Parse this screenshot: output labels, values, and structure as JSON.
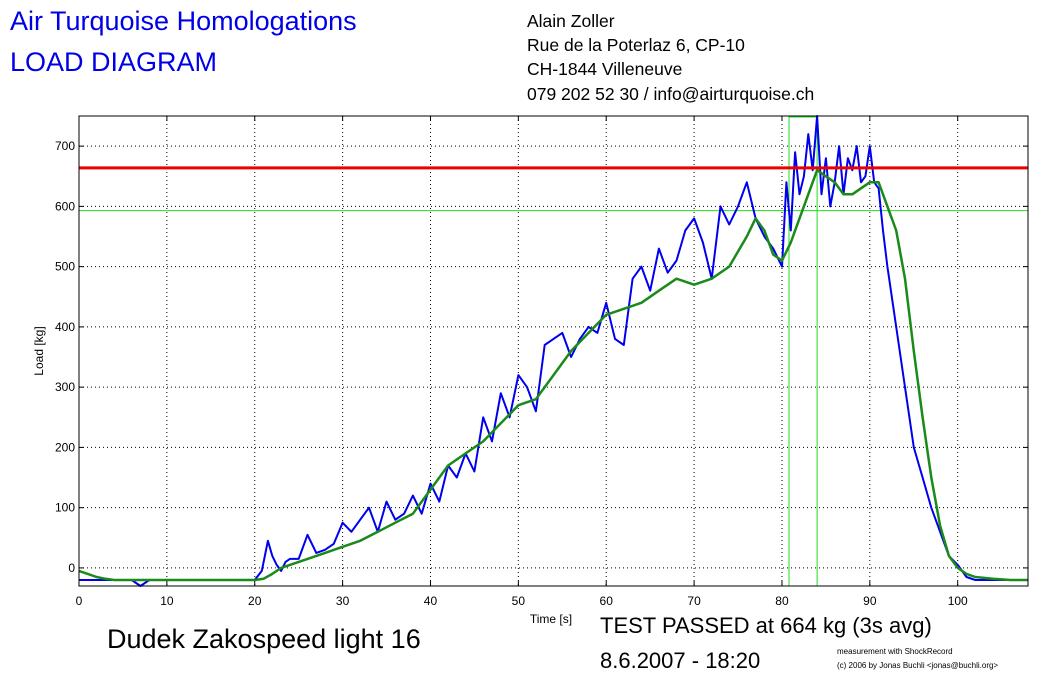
{
  "header": {
    "company": "Air Turquoise Homologations",
    "diagram_title": "LOAD DIAGRAM",
    "contact_lines": [
      "Alain Zoller",
      "Rue de la Poterlaz 6, CP-10",
      "CH-1844 Villeneuve",
      "079 202 52 30 / info@airturquoise.ch"
    ]
  },
  "footer": {
    "model": "Dudek Zakospeed light 16",
    "result": "TEST PASSED at 664 kg (3s avg)",
    "date": "8.6.2007 - 18:20",
    "credit_lines": [
      "measurement with ShockRecord",
      "(c) 2006 by Jonas Buchli <jonas@buchli.org>"
    ]
  },
  "chart_data": {
    "type": "line",
    "xlabel": "Time [s]",
    "ylabel": "Load [kg]",
    "xlim": [
      0,
      108
    ],
    "ylim": [
      -30,
      750
    ],
    "xticks": [
      0,
      10,
      20,
      30,
      40,
      50,
      60,
      70,
      80,
      90,
      100
    ],
    "yticks": [
      0,
      100,
      200,
      300,
      400,
      500,
      600,
      700
    ],
    "grid": true,
    "colors": {
      "raw": "#0000ee",
      "avg": "#1a8a1a",
      "pass_line": "#ee0000",
      "markers": "#22dd22"
    },
    "reference_lines": {
      "pass_load": 664,
      "marker_load": 593,
      "window_start": 80.8,
      "window_end": 84
    },
    "series": [
      {
        "id": "raw",
        "x": [
          0,
          3,
          6,
          7,
          8,
          10,
          15,
          20,
          20.8,
          21.5,
          22,
          22.5,
          23,
          23.5,
          24,
          25,
          26,
          27,
          28,
          29,
          30,
          31,
          32,
          33,
          34,
          35,
          36,
          37,
          38,
          39,
          40,
          41,
          42,
          43,
          44,
          45,
          46,
          47,
          48,
          49,
          50,
          51,
          52,
          53,
          54,
          55,
          56,
          57,
          58,
          59,
          60,
          61,
          62,
          63,
          64,
          65,
          66,
          67,
          68,
          69,
          70,
          71,
          72,
          73,
          74,
          75,
          76,
          77,
          78,
          79,
          80,
          80.5,
          81,
          81.5,
          82,
          82.5,
          83,
          83.5,
          84,
          84.5,
          85,
          85.5,
          86,
          86.5,
          87,
          87.5,
          88,
          88.5,
          89,
          89.5,
          90,
          90.5,
          91,
          91.5,
          92,
          93,
          94,
          95,
          96,
          97,
          98,
          99,
          100,
          101,
          102,
          104,
          106,
          108
        ],
        "y": [
          -20,
          -20,
          -20,
          -30,
          -20,
          -20,
          -20,
          -20,
          -5,
          45,
          20,
          5,
          -5,
          10,
          15,
          15,
          55,
          25,
          30,
          40,
          75,
          60,
          80,
          100,
          60,
          110,
          80,
          90,
          120,
          90,
          140,
          110,
          170,
          150,
          190,
          160,
          250,
          210,
          290,
          250,
          320,
          300,
          260,
          370,
          380,
          390,
          350,
          380,
          400,
          390,
          440,
          380,
          370,
          480,
          500,
          460,
          530,
          490,
          510,
          560,
          580,
          540,
          480,
          600,
          570,
          600,
          640,
          580,
          550,
          530,
          500,
          640,
          560,
          690,
          620,
          650,
          720,
          660,
          750,
          620,
          680,
          600,
          640,
          700,
          620,
          680,
          660,
          700,
          640,
          650,
          700,
          640,
          630,
          560,
          500,
          400,
          300,
          200,
          150,
          100,
          60,
          20,
          5,
          -15,
          -20,
          -20,
          -20,
          -20
        ]
      },
      {
        "id": "avg",
        "x": [
          0,
          1,
          2,
          3,
          4,
          10,
          20,
          21,
          22,
          23,
          24,
          25,
          26,
          27,
          28,
          30,
          32,
          34,
          36,
          38,
          40,
          42,
          44,
          46,
          48,
          50,
          52,
          54,
          56,
          58,
          60,
          62,
          64,
          66,
          68,
          70,
          72,
          74,
          76,
          77,
          78,
          79,
          80,
          81,
          82,
          83,
          84,
          85,
          86,
          87,
          88,
          89,
          90,
          91,
          92,
          93,
          94,
          95,
          96,
          97,
          98,
          99,
          100,
          101,
          102,
          104,
          106,
          108
        ],
        "y": [
          -5,
          -10,
          -15,
          -18,
          -20,
          -20,
          -20,
          -18,
          -10,
          0,
          5,
          10,
          15,
          20,
          25,
          35,
          45,
          60,
          75,
          90,
          130,
          170,
          190,
          210,
          240,
          270,
          280,
          320,
          360,
          390,
          420,
          430,
          440,
          460,
          480,
          470,
          480,
          500,
          550,
          580,
          560,
          520,
          510,
          540,
          580,
          620,
          660,
          650,
          640,
          620,
          620,
          630,
          640,
          640,
          600,
          560,
          480,
          360,
          250,
          150,
          70,
          20,
          0,
          -10,
          -15,
          -18,
          -20,
          -20
        ]
      }
    ]
  }
}
